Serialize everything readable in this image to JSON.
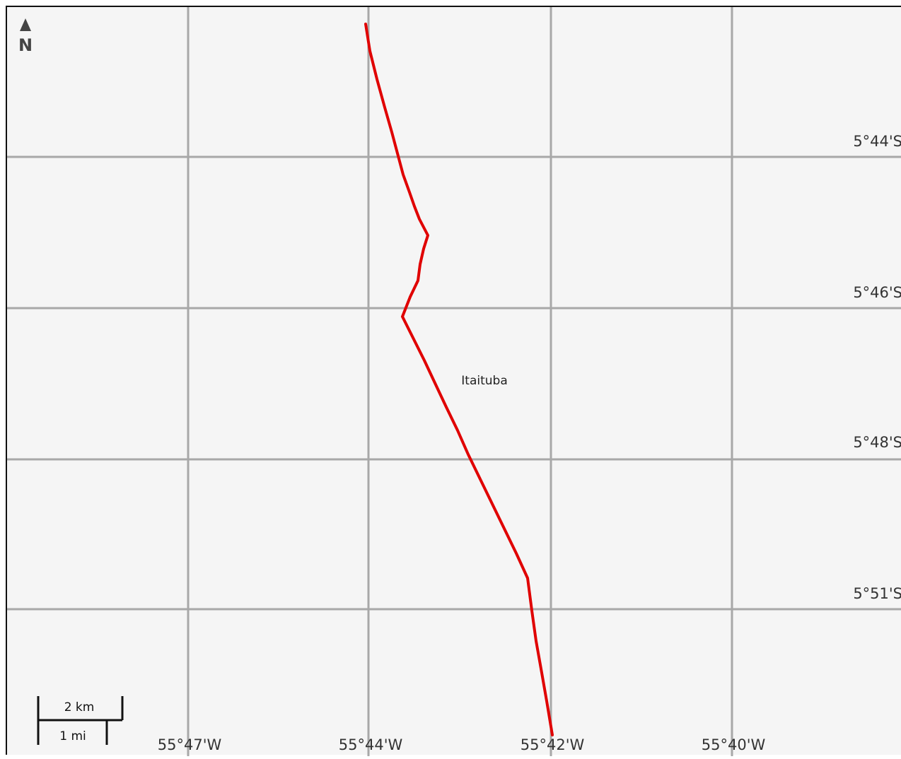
{
  "map": {
    "north_label": "N",
    "place_label": "Itaituba",
    "route_color": "#e00000",
    "grid_color": "#a8a8a8",
    "background_color": "#f5f5f5"
  },
  "latitude_labels": [
    "5°44'S",
    "5°46'S",
    "5°48'S",
    "5°51'S"
  ],
  "longitude_labels": [
    "55°47'W",
    "55°44'W",
    "55°42'W",
    "55°40'W"
  ],
  "scale_bar": {
    "km_label": "2 km",
    "mi_label": "1 mi"
  },
  "icons": {
    "north_arrow": "north-arrow-icon"
  }
}
